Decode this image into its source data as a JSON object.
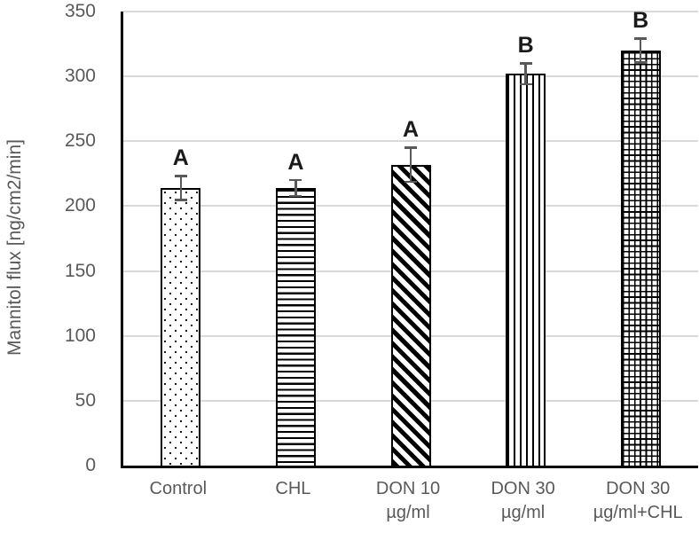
{
  "chart_data": {
    "type": "bar",
    "title": "",
    "xlabel": "",
    "ylabel": "Mannitol flux [ng/cm2/min]",
    "ylim": [
      0,
      350
    ],
    "yticks": [
      0,
      50,
      100,
      150,
      200,
      250,
      300,
      350
    ],
    "grid": true,
    "legend": "none",
    "categories": [
      "Control",
      "CHL",
      "DON 10 µg/ml",
      "DON 30 µg/ml",
      "DON 30 µg/ml+CHL"
    ],
    "category_label_lines": [
      [
        "Control"
      ],
      [
        "CHL"
      ],
      [
        "DON 10",
        "µg/ml"
      ],
      [
        "DON 30",
        "µg/ml"
      ],
      [
        "DON 30",
        "µg/ml+CHL"
      ]
    ],
    "values": [
      214,
      214,
      232,
      302,
      320
    ],
    "errors": [
      10,
      7,
      14,
      9,
      10
    ],
    "significance_letters": [
      "A",
      "A",
      "A",
      "B",
      "B"
    ],
    "bar_patterns": [
      "dots",
      "horizontal-lines",
      "diagonal-stripes",
      "vertical-lines",
      "grid-crosshatch"
    ],
    "colors": {
      "bar_fill": "#ffffff",
      "pattern_ink": "#000000",
      "axis_line": "#000000",
      "gridline": "#d9d9d9",
      "axis_text": "#595959",
      "letter_text": "#1a1a1a",
      "error_bar": "#595959"
    }
  }
}
